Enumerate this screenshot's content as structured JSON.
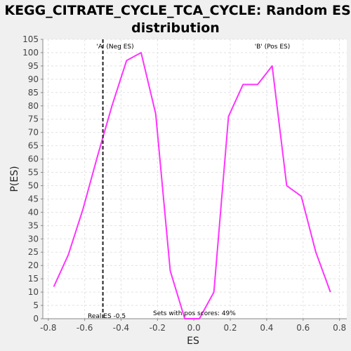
{
  "chart_data": {
    "type": "line",
    "title_line1": "KEGG_CITRATE_CYCLE_TCA_CYCLE: Random ES",
    "title_line2": "distribution",
    "xlabel": "ES",
    "ylabel": "P(ES)",
    "xlim": [
      -0.83,
      0.84
    ],
    "ylim": [
      0,
      105
    ],
    "xticks": [
      -0.8,
      -0.6,
      -0.4,
      -0.2,
      0.0,
      0.2,
      0.4,
      0.6,
      0.8
    ],
    "xtick_labels": [
      "-0.8",
      "-0.6",
      "-0.4",
      "-0.2",
      "0.0",
      "0.2",
      "0.4",
      "0.6",
      "0.8"
    ],
    "yticks": [
      0,
      5,
      10,
      15,
      20,
      25,
      30,
      35,
      40,
      45,
      50,
      55,
      60,
      65,
      70,
      75,
      80,
      85,
      90,
      95,
      100,
      105
    ],
    "grid": true,
    "series": [
      {
        "color": "#ff33ff",
        "x": [
          -0.77,
          -0.69,
          -0.61,
          -0.53,
          -0.45,
          -0.37,
          -0.29,
          -0.21,
          -0.13,
          -0.05,
          0.03,
          0.11,
          0.19,
          0.27,
          0.35,
          0.43,
          0.51,
          0.59,
          0.67,
          0.75
        ],
        "y": [
          12,
          24,
          41,
          61,
          80,
          97,
          100,
          77,
          18,
          0,
          0,
          10,
          76,
          88,
          88,
          95,
          50,
          46,
          25,
          10
        ]
      }
    ],
    "real_es": -0.5,
    "annotations": {
      "neg_label": "'A' (Neg ES)",
      "neg_color": "#3333cc",
      "pos_label": "'B' (Pos ES)",
      "pos_color": "#cc3333",
      "real_es_label": "Real ES -0.5",
      "pos_scores_label": "Sets with pos scores: 49%"
    }
  }
}
